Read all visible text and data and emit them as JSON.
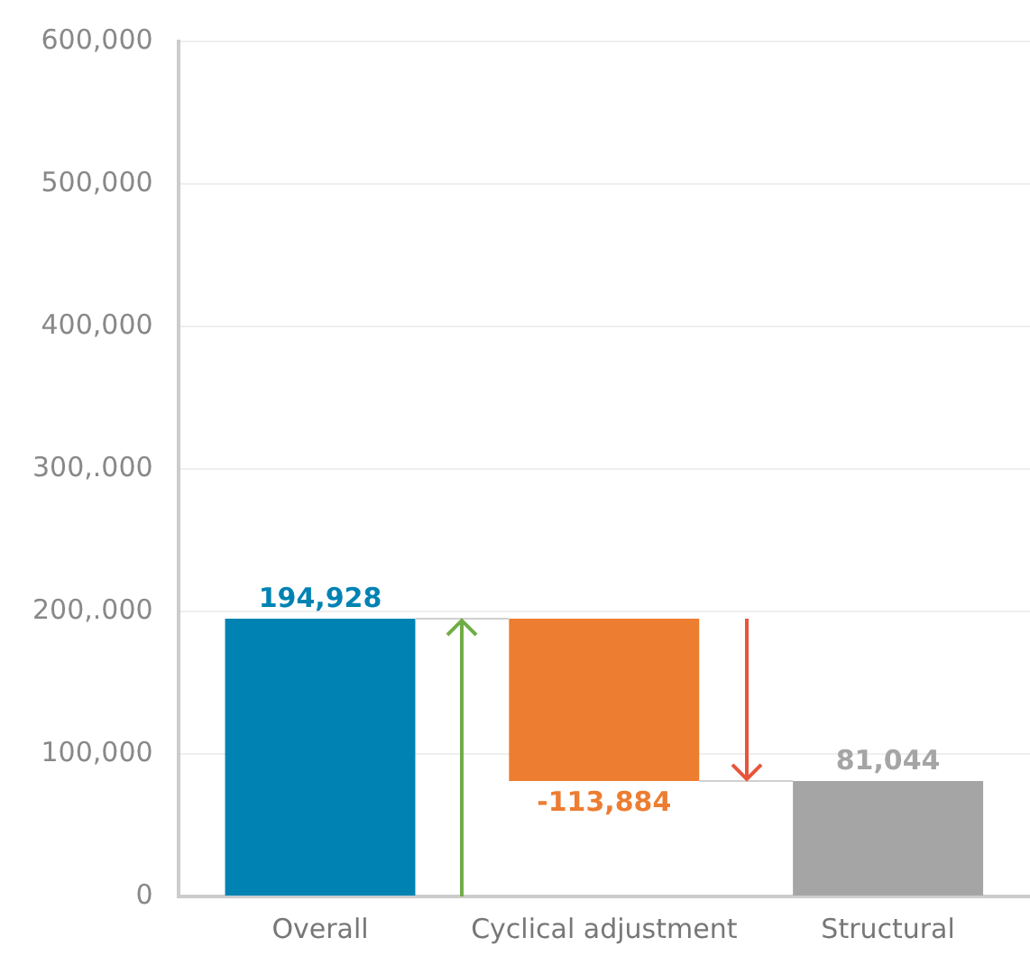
{
  "chart_data": {
    "type": "bar",
    "categories": [
      "Overall",
      "Cyclical adjustment",
      "Structural"
    ],
    "values": [
      194928,
      -113884,
      81044
    ],
    "base": [
      0,
      194928,
      0
    ],
    "colors": [
      "#0083b3",
      "#ed7d31",
      "#a5a5a5"
    ],
    "value_labels": [
      "194,928",
      "-113,884",
      "81,044"
    ],
    "ylim": [
      0,
      600000
    ],
    "yticks": [
      0,
      {
        "value": 100000,
        "label": "100,000"
      },
      {
        "value": 200000,
        "label": "200,.000"
      },
      {
        "value": 300000,
        "label": "300,.000"
      },
      {
        "value": 400000,
        "label": "400,000"
      },
      {
        "value": 500000,
        "label": "500,000"
      },
      {
        "value": 600000,
        "label": "600,000"
      }
    ],
    "grid": "y"
  }
}
